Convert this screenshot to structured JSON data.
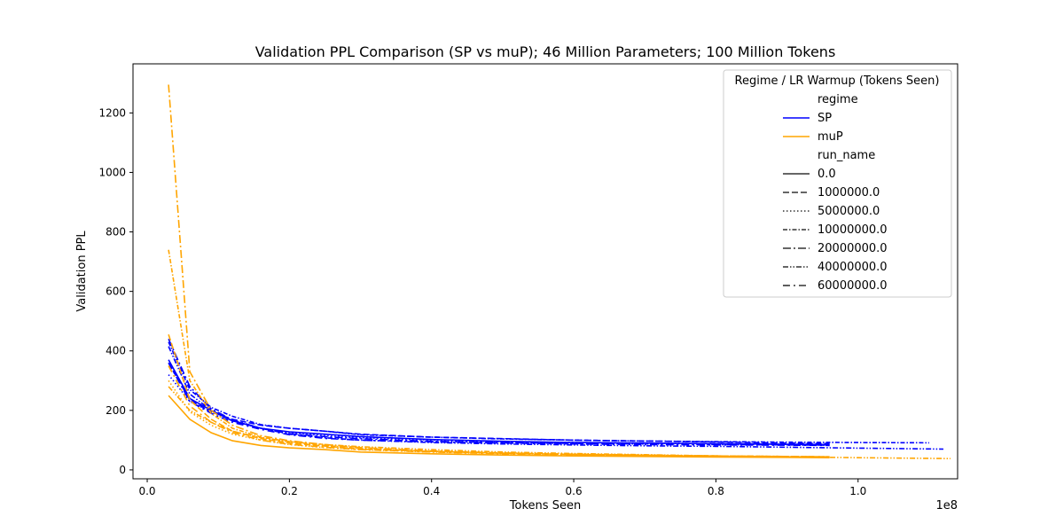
{
  "chart_data": {
    "type": "line",
    "title": "Validation PPL Comparison (SP vs muP); 46 Million Parameters; 100 Million Tokens",
    "xlabel": "Tokens Seen",
    "ylabel": "Validation PPL",
    "x_offset_label": "1e8",
    "xlim": [
      -0.02,
      1.14
    ],
    "ylim": [
      -30,
      1365
    ],
    "xticks": [
      0.0,
      0.2,
      0.4,
      0.6,
      0.8,
      1.0
    ],
    "xtick_labels": [
      "0.0",
      "0.2",
      "0.4",
      "0.6",
      "0.8",
      "1.0"
    ],
    "yticks": [
      0,
      200,
      400,
      600,
      800,
      1000,
      1200
    ],
    "ytick_labels": [
      "0",
      "200",
      "400",
      "600",
      "800",
      "1000",
      "1200"
    ],
    "grid": false,
    "legend": {
      "title": "Regime / LR Warmup (Tokens Seen)",
      "placement": "upper-right",
      "regime_header": "regime",
      "regime_entries": [
        {
          "label": "SP",
          "color": "#0000ff"
        },
        {
          "label": "muP",
          "color": "#ffa500"
        }
      ],
      "run_header": "run_name",
      "run_entries": [
        {
          "label": "0.0",
          "dash": "solid"
        },
        {
          "label": "1000000.0",
          "dash": "dashed"
        },
        {
          "label": "5000000.0",
          "dash": "dotted"
        },
        {
          "label": "10000000.0",
          "dash": "dashdot-short"
        },
        {
          "label": "20000000.0",
          "dash": "dashdot"
        },
        {
          "label": "40000000.0",
          "dash": "dashdotdot"
        },
        {
          "label": "60000000.0",
          "dash": "loosedashdot"
        }
      ]
    },
    "series": [
      {
        "regime": "SP",
        "run": "0.0",
        "color": "#0000ff",
        "dash": "solid",
        "x": [
          0.03,
          0.06,
          0.09,
          0.12,
          0.16,
          0.2,
          0.25,
          0.3,
          0.4,
          0.5,
          0.6,
          0.7,
          0.8,
          0.9,
          0.96
        ],
        "y": [
          370,
          240,
          200,
          165,
          140,
          128,
          120,
          112,
          102,
          96,
          92,
          90,
          88,
          86,
          85
        ]
      },
      {
        "regime": "SP",
        "run": "1000000.0",
        "color": "#0000ff",
        "dash": "dashed",
        "x": [
          0.03,
          0.06,
          0.09,
          0.12,
          0.16,
          0.2,
          0.25,
          0.3,
          0.4,
          0.5,
          0.6,
          0.7,
          0.8,
          0.9,
          0.96
        ],
        "y": [
          360,
          235,
          195,
          170,
          150,
          140,
          130,
          120,
          110,
          105,
          100,
          97,
          94,
          90,
          88
        ]
      },
      {
        "regime": "SP",
        "run": "5000000.0",
        "color": "#0000ff",
        "dash": "dotted",
        "x": [
          0.03,
          0.06,
          0.09,
          0.12,
          0.16,
          0.2,
          0.25,
          0.3,
          0.4,
          0.5,
          0.6,
          0.7,
          0.8,
          0.9,
          0.96
        ],
        "y": [
          320,
          230,
          195,
          165,
          140,
          125,
          115,
          108,
          100,
          95,
          92,
          90,
          88,
          86,
          85
        ]
      },
      {
        "regime": "SP",
        "run": "10000000.0",
        "color": "#0000ff",
        "dash": "dashdot-short",
        "x": [
          0.03,
          0.06,
          0.09,
          0.12,
          0.16,
          0.2,
          0.25,
          0.3,
          0.4,
          0.5,
          0.6,
          0.7,
          0.8,
          0.9,
          1.0,
          1.1
        ],
        "y": [
          430,
          270,
          210,
          180,
          152,
          140,
          130,
          118,
          110,
          104,
          100,
          97,
          95,
          93,
          92,
          91
        ]
      },
      {
        "regime": "SP",
        "run": "20000000.0",
        "color": "#0000ff",
        "dash": "dashdot",
        "x": [
          0.03,
          0.06,
          0.09,
          0.12,
          0.16,
          0.2,
          0.25,
          0.3,
          0.4,
          0.5,
          0.6,
          0.7,
          0.8,
          0.9,
          0.96
        ],
        "y": [
          440,
          280,
          205,
          168,
          140,
          122,
          112,
          105,
          96,
          92,
          89,
          87,
          85,
          84,
          83
        ]
      },
      {
        "regime": "SP",
        "run": "40000000.0",
        "color": "#0000ff",
        "dash": "dashdotdot",
        "x": [
          0.03,
          0.06,
          0.09,
          0.12,
          0.16,
          0.2,
          0.25,
          0.3,
          0.4,
          0.5,
          0.6,
          0.7,
          0.8,
          0.9,
          1.0,
          1.12
        ],
        "y": [
          415,
          255,
          200,
          165,
          140,
          120,
          108,
          100,
          92,
          87,
          84,
          81,
          79,
          76,
          73,
          70
        ]
      },
      {
        "regime": "SP",
        "run": "60000000.0",
        "color": "#0000ff",
        "dash": "loosedashdot",
        "x": [
          0.03,
          0.06,
          0.09,
          0.12,
          0.16,
          0.2,
          0.25,
          0.3,
          0.4,
          0.5,
          0.6,
          0.7,
          0.8,
          0.9,
          0.96
        ],
        "y": [
          360,
          230,
          190,
          160,
          136,
          118,
          106,
          100,
          94,
          90,
          87,
          85,
          84,
          83,
          82
        ]
      },
      {
        "regime": "muP",
        "run": "0.0",
        "color": "#ffa500",
        "dash": "solid",
        "x": [
          0.03,
          0.06,
          0.09,
          0.12,
          0.16,
          0.2,
          0.25,
          0.3,
          0.4,
          0.5,
          0.6,
          0.7,
          0.8,
          0.9,
          0.96
        ],
        "y": [
          250,
          170,
          125,
          98,
          82,
          74,
          68,
          60,
          54,
          50,
          47,
          45,
          43,
          42,
          41
        ]
      },
      {
        "regime": "muP",
        "run": "1000000.0",
        "color": "#ffa500",
        "dash": "dashed",
        "x": [
          0.03,
          0.06,
          0.09,
          0.12,
          0.16,
          0.2,
          0.25,
          0.3,
          0.4,
          0.5,
          0.6,
          0.7,
          0.8,
          0.9,
          0.96
        ],
        "y": [
          455,
          235,
          170,
          130,
          105,
          90,
          80,
          70,
          62,
          56,
          52,
          49,
          47,
          45,
          44
        ]
      },
      {
        "regime": "muP",
        "run": "5000000.0",
        "color": "#ffa500",
        "dash": "dotted",
        "x": [
          0.03,
          0.06,
          0.09,
          0.12,
          0.16,
          0.2,
          0.25,
          0.3,
          0.4,
          0.5,
          0.6,
          0.7,
          0.8,
          0.9,
          0.96
        ],
        "y": [
          300,
          195,
          150,
          120,
          100,
          85,
          75,
          68,
          60,
          55,
          52,
          49,
          47,
          45,
          44
        ]
      },
      {
        "regime": "muP",
        "run": "10000000.0",
        "color": "#ffa500",
        "dash": "dashdot-short",
        "x": [
          0.03,
          0.06,
          0.09,
          0.12,
          0.16,
          0.2,
          0.25,
          0.3,
          0.4,
          0.5,
          0.6,
          0.7,
          0.8,
          0.9,
          0.96
        ],
        "y": [
          740,
          300,
          190,
          140,
          110,
          95,
          82,
          72,
          62,
          56,
          52,
          49,
          46,
          44,
          43
        ]
      },
      {
        "regime": "muP",
        "run": "20000000.0",
        "color": "#ffa500",
        "dash": "dashdot",
        "x": [
          0.03,
          0.06,
          0.09,
          0.12,
          0.16,
          0.2,
          0.25,
          0.3,
          0.4,
          0.5,
          0.6,
          0.7,
          0.8,
          0.9,
          0.96
        ],
        "y": [
          1295,
          330,
          200,
          150,
          115,
          98,
          85,
          75,
          64,
          57,
          53,
          50,
          47,
          45,
          44
        ]
      },
      {
        "regime": "muP",
        "run": "40000000.0",
        "color": "#ffa500",
        "dash": "dashdotdot",
        "x": [
          0.03,
          0.06,
          0.09,
          0.12,
          0.16,
          0.2,
          0.25,
          0.3,
          0.4,
          0.5,
          0.6,
          0.7,
          0.8,
          0.9,
          1.0,
          1.13
        ],
        "y": [
          280,
          200,
          160,
          130,
          108,
          95,
          85,
          78,
          68,
          60,
          55,
          51,
          47,
          44,
          41,
          38
        ]
      },
      {
        "regime": "muP",
        "run": "60000000.0",
        "color": "#ffa500",
        "dash": "loosedashdot",
        "x": [
          0.03,
          0.06,
          0.09,
          0.12,
          0.16,
          0.2,
          0.25,
          0.3,
          0.4,
          0.5,
          0.6,
          0.7,
          0.8,
          0.9,
          0.96
        ],
        "y": [
          350,
          215,
          160,
          125,
          100,
          86,
          76,
          68,
          60,
          54,
          50,
          47,
          45,
          43,
          42
        ]
      }
    ]
  }
}
